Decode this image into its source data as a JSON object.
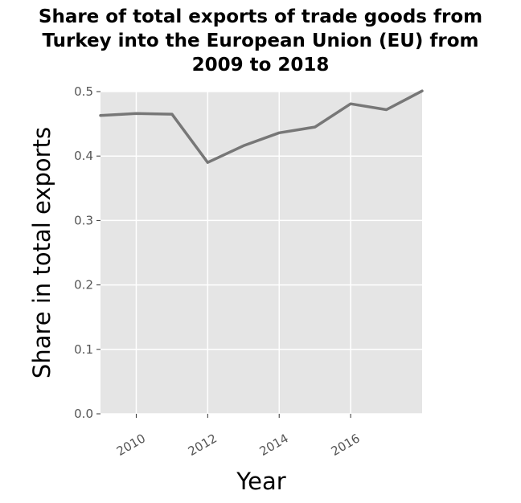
{
  "chart_data": {
    "type": "line",
    "title_lines": [
      "Share of total exports of trade goods from",
      "Turkey into the European Union (EU) from",
      "2009 to 2018"
    ],
    "xlabel": "Year",
    "ylabel": "Share in total exports",
    "xlim": [
      2009,
      2018
    ],
    "ylim": [
      0,
      0.5
    ],
    "x_ticks": [
      2010,
      2012,
      2014,
      2016
    ],
    "x_tick_labels": [
      "2010",
      "2012",
      "2014",
      "2016"
    ],
    "y_ticks": [
      0,
      0.1,
      0.2,
      0.3,
      0.4,
      0.5
    ],
    "y_tick_labels": [
      "0.0",
      "0.1",
      "0.2",
      "0.3",
      "0.4",
      "0.5"
    ],
    "grid": true,
    "series": [
      {
        "x": [
          2009,
          2010,
          2011,
          2012,
          2013,
          2014,
          2015,
          2016,
          2017,
          2018
        ],
        "y": [
          0.463,
          0.466,
          0.465,
          0.39,
          0.416,
          0.436,
          0.445,
          0.481,
          0.472,
          0.501
        ],
        "color": "#777777"
      }
    ],
    "panel_color": "#e5e5e5",
    "grid_color": "#ffffff"
  }
}
